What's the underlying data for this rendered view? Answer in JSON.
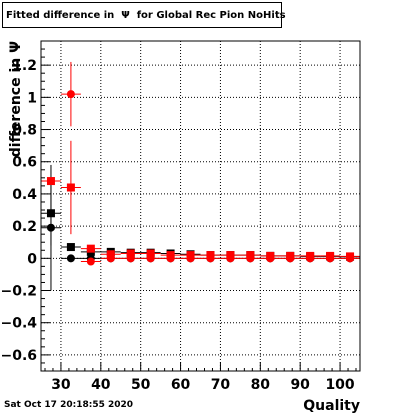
{
  "title": "Fitted difference in  Ψ  for Global Rec Pion NoHits",
  "footer": "Sat Oct 17 20:18:55 2020",
  "chart_data": {
    "type": "scatter",
    "title": "Fitted difference in  Ψ  for Global Rec Pion NoHits",
    "xlabel": "Quality",
    "ylabel": "difference in Ψ",
    "xlim": [
      25,
      105
    ],
    "ylim": [
      -0.7,
      1.35
    ],
    "xticks": [
      30,
      40,
      50,
      60,
      70,
      80,
      90,
      100
    ],
    "yticks": [
      -0.6,
      -0.4,
      -0.2,
      0,
      0.2,
      0.4,
      0.6,
      0.8,
      1,
      1.2
    ],
    "ytick_labels": [
      "−0.6",
      "−0.4",
      "−0.2",
      "0",
      "0.2",
      "0.4",
      "0.6",
      "0.8",
      "1",
      "1.2"
    ],
    "grid": true,
    "series": [
      {
        "color": "#000000",
        "marker": "square",
        "x": [
          27.5,
          32.5,
          37.5,
          42.5,
          47.5,
          52.5,
          57.5,
          62.5,
          67.5,
          72.5,
          77.5,
          82.5,
          87.5,
          92.5,
          97.5,
          102.5
        ],
        "y": [
          0.28,
          0.07,
          0.04,
          0.04,
          0.035,
          0.035,
          0.03,
          0.025,
          0.02,
          0.02,
          0.02,
          0.015,
          0.015,
          0.012,
          0.012,
          0.01
        ],
        "yerr": [
          0.2,
          0.02,
          0.01,
          0.01,
          0.01,
          0.01,
          0.01,
          0.01,
          0.01,
          0.01,
          0.01,
          0.01,
          0.01,
          0.01,
          0.01,
          0.01
        ]
      },
      {
        "color": "#000000",
        "marker": "circle",
        "x": [
          27.5,
          32.5,
          37.5,
          42.5,
          47.5,
          52.5,
          57.5,
          62.5,
          67.5,
          72.5,
          77.5,
          82.5,
          87.5,
          92.5,
          97.5,
          102.5
        ],
        "y": [
          0.19,
          0.0,
          0.0,
          0.0,
          0.0,
          0.0,
          0.0,
          0.0,
          0.0,
          0.0,
          0.0,
          0.0,
          0.0,
          0.0,
          0.0,
          0.0
        ],
        "yerr": [
          0.39,
          0.01,
          0.01,
          0.005,
          0.005,
          0.005,
          0.005,
          0.005,
          0.005,
          0.005,
          0.005,
          0.005,
          0.005,
          0.005,
          0.005,
          0.005
        ]
      },
      {
        "color": "#ff0000",
        "marker": "square",
        "x": [
          27.5,
          32.5,
          37.5,
          42.5,
          47.5,
          52.5,
          57.5,
          62.5,
          67.5,
          72.5,
          77.5,
          82.5,
          87.5,
          92.5,
          97.5,
          102.5
        ],
        "y": [
          0.48,
          0.44,
          0.06,
          0.025,
          0.03,
          0.03,
          0.02,
          0.02,
          0.02,
          0.02,
          0.02,
          0.015,
          0.015,
          0.015,
          0.015,
          0.012
        ],
        "yerr": [
          0.0,
          0.29,
          0.02,
          0.01,
          0.01,
          0.01,
          0.01,
          0.01,
          0.01,
          0.01,
          0.01,
          0.01,
          0.01,
          0.01,
          0.01,
          0.01
        ]
      },
      {
        "color": "#ff0000",
        "marker": "circle",
        "x": [
          32.5,
          37.5,
          42.5,
          47.5,
          52.5,
          57.5,
          62.5,
          67.5,
          72.5,
          77.5,
          82.5,
          87.5,
          92.5,
          97.5,
          102.5
        ],
        "y": [
          1.02,
          -0.02,
          0.0,
          0.0,
          0.0,
          0.0,
          0.0,
          0.0,
          0.0,
          0.0,
          0.0,
          0.0,
          0.0,
          0.0,
          0.0
        ],
        "yerr": [
          0.2,
          0.02,
          0.01,
          0.005,
          0.005,
          0.005,
          0.005,
          0.005,
          0.005,
          0.005,
          0.005,
          0.005,
          0.005,
          0.005,
          0.005
        ]
      }
    ]
  }
}
